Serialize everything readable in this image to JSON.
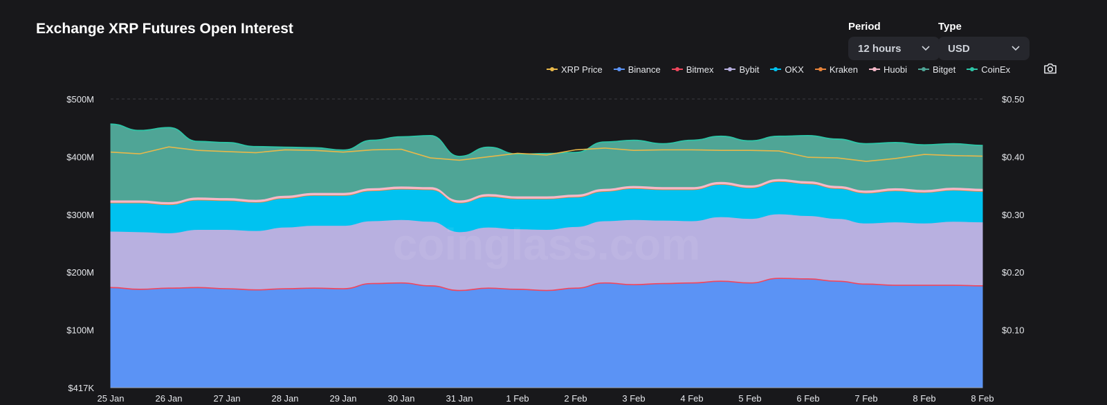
{
  "header": {
    "title": "Exchange XRP Futures Open Interest"
  },
  "controls": {
    "period": {
      "label": "Period",
      "value": "12 hours"
    },
    "type": {
      "label": "Type",
      "value": "USD"
    }
  },
  "watermark": "coinglass.com",
  "chart_data": {
    "type": "area",
    "title": "Exchange XRP Futures Open Interest",
    "stacked": true,
    "legend_position": "top-right",
    "grid": true,
    "x": [
      "25 Jan",
      "",
      "26 Jan",
      "",
      "27 Jan",
      "",
      "28 Jan",
      "",
      "29 Jan",
      "",
      "30 Jan",
      "",
      "31 Jan",
      "",
      "1 Feb",
      "",
      "2 Feb",
      "",
      "3 Feb",
      "",
      "4 Feb",
      "",
      "5 Feb",
      "",
      "6 Feb",
      "",
      "7 Feb",
      "",
      "8 Feb",
      "",
      "8 Feb"
    ],
    "x_tick_labels": [
      "25 Jan",
      "26 Jan",
      "27 Jan",
      "28 Jan",
      "29 Jan",
      "30 Jan",
      "31 Jan",
      "1 Feb",
      "2 Feb",
      "3 Feb",
      "4 Feb",
      "5 Feb",
      "6 Feb",
      "7 Feb",
      "8 Feb",
      "8 Feb"
    ],
    "y_left": {
      "ticks": [
        "$417K",
        "$100M",
        "$200M",
        "$300M",
        "$400M",
        "$500M"
      ],
      "range": [
        0,
        500
      ]
    },
    "y_right": {
      "ticks": [
        "$0.10",
        "$0.20",
        "$0.30",
        "$0.40",
        "$0.50"
      ],
      "range": [
        0,
        0.5
      ]
    },
    "series": [
      {
        "name": "Binance",
        "color": "#5b93f5",
        "values": [
          173,
          170,
          172,
          173,
          171,
          169,
          171,
          172,
          171,
          180,
          181,
          176,
          168,
          172,
          170,
          168,
          172,
          181,
          178,
          180,
          181,
          184,
          181,
          189,
          188,
          184,
          179,
          177,
          177,
          177,
          176
        ]
      },
      {
        "name": "Bitmex",
        "color": "#f0475d",
        "values": [
          2,
          2,
          2,
          2,
          2,
          2,
          2,
          2,
          2,
          2,
          2,
          2,
          2,
          2,
          2,
          2,
          2,
          2,
          2,
          2,
          2,
          2,
          2,
          2,
          2,
          2,
          2,
          2,
          2,
          2,
          2
        ]
      },
      {
        "name": "Bybit",
        "color": "#b8b0e0",
        "values": [
          96,
          98,
          94,
          99,
          101,
          101,
          105,
          107,
          108,
          107,
          108,
          110,
          100,
          104,
          103,
          104,
          105,
          106,
          111,
          108,
          106,
          110,
          110,
          110,
          108,
          107,
          104,
          108,
          106,
          109,
          109
        ]
      },
      {
        "name": "OKX",
        "color": "#00c2f0",
        "values": [
          49,
          50,
          49,
          51,
          50,
          49,
          50,
          52,
          52,
          52,
          53,
          55,
          50,
          53,
          52,
          53,
          51,
          51,
          54,
          53,
          54,
          56,
          53,
          56,
          55,
          52,
          52,
          54,
          53,
          54,
          53
        ]
      },
      {
        "name": "Kraken",
        "color": "#e8843a",
        "values": [
          1,
          1,
          1,
          1,
          1,
          1,
          1,
          1,
          1,
          1,
          1,
          1,
          1,
          1,
          1,
          1,
          1,
          1,
          1,
          1,
          1,
          1,
          1,
          1,
          1,
          1,
          1,
          1,
          1,
          1,
          1
        ]
      },
      {
        "name": "Huobi",
        "color": "#f5b8c8",
        "values": [
          4,
          4,
          4,
          4,
          4,
          4,
          4,
          4,
          4,
          4,
          4,
          4,
          4,
          4,
          4,
          4,
          4,
          4,
          4,
          4,
          4,
          4,
          4,
          4,
          4,
          4,
          4,
          4,
          4,
          4,
          4
        ]
      },
      {
        "name": "Bitget",
        "color": "#4fa596",
        "values": [
          131,
          120,
          128,
          96,
          95,
          91,
          83,
          77,
          73,
          82,
          85,
          88,
          75,
          80,
          72,
          73,
          72,
          80,
          78,
          74,
          80,
          78,
          76,
          73,
          78,
          80,
          80,
          78,
          77,
          75,
          74
        ]
      },
      {
        "name": "CoinEx",
        "color": "#2ec4a6",
        "values": [
          1,
          1,
          1,
          1,
          1,
          1,
          1,
          1,
          1,
          1,
          1,
          1,
          1,
          1,
          1,
          1,
          1,
          1,
          1,
          1,
          1,
          1,
          1,
          1,
          1,
          1,
          1,
          1,
          1,
          1,
          1
        ]
      }
    ],
    "line_series": {
      "name": "XRP Price",
      "color": "#e8b84a",
      "axis": "right",
      "values": [
        0.408,
        0.405,
        0.417,
        0.411,
        0.409,
        0.407,
        0.412,
        0.411,
        0.408,
        0.412,
        0.413,
        0.398,
        0.394,
        0.4,
        0.406,
        0.403,
        0.412,
        0.415,
        0.411,
        0.412,
        0.412,
        0.411,
        0.411,
        0.41,
        0.399,
        0.398,
        0.392,
        0.397,
        0.404,
        0.402,
        0.401
      ]
    }
  }
}
